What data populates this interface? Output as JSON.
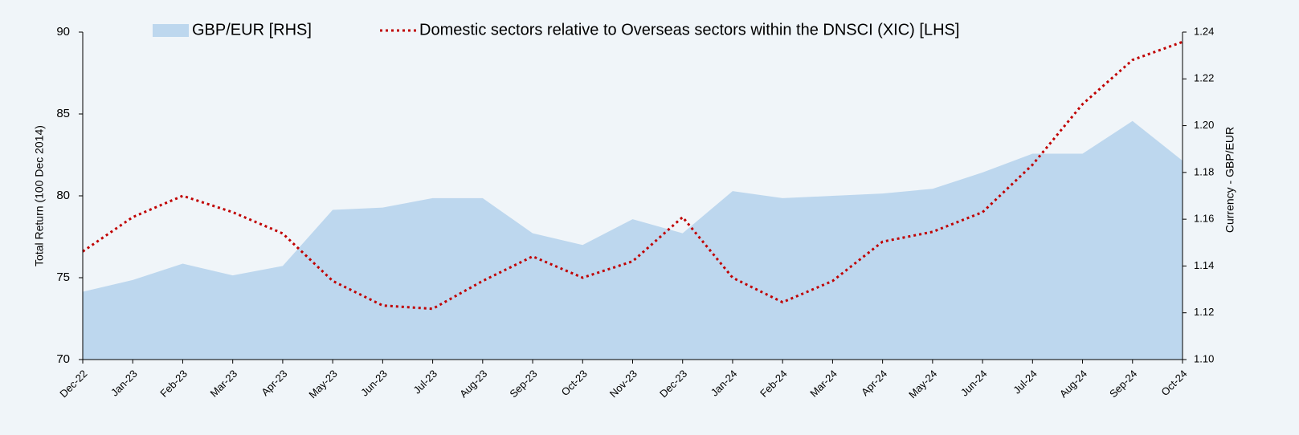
{
  "chart_data": {
    "type": "combo",
    "categories": [
      "Dec-22",
      "Jan-23",
      "Feb-23",
      "Mar-23",
      "Apr-23",
      "May-23",
      "Jun-23",
      "Jul-23",
      "Aug-23",
      "Sep-23",
      "Oct-23",
      "Nov-23",
      "Dec-23",
      "Jan-24",
      "Feb-24",
      "Mar-24",
      "Apr-24",
      "May-24",
      "Jun-24",
      "Jul-24",
      "Aug-24",
      "Sep-24",
      "Oct-24"
    ],
    "series": [
      {
        "name": "GBP/EUR [RHS]",
        "color": "#bdd7ee",
        "mark": "area",
        "axis": "y2",
        "values": [
          1.129,
          1.134,
          1.141,
          1.136,
          1.14,
          1.164,
          1.165,
          1.169,
          1.169,
          1.154,
          1.149,
          1.16,
          1.154,
          1.172,
          1.169,
          1.17,
          1.171,
          1.173,
          1.18,
          1.188,
          1.188,
          1.202,
          1.185
        ]
      },
      {
        "name": "Domestic sectors relative to Overseas sectors within the DNSCI (XIC) [LHS]",
        "color": "#c00000",
        "mark": "dotted-line",
        "axis": "y",
        "values": [
          76.6,
          78.7,
          80.0,
          79.0,
          77.7,
          74.8,
          73.3,
          73.1,
          74.8,
          76.3,
          75.0,
          76.0,
          78.7,
          75.0,
          73.5,
          74.8,
          77.2,
          77.8,
          79.0,
          81.9,
          85.6,
          88.3,
          89.4
        ]
      }
    ],
    "ylabel": "Total Return (100 Dec 2014)",
    "y2label": "Currency -  GBP/EUR",
    "ylim": [
      70,
      90
    ],
    "yticks": [
      70,
      75,
      80,
      85,
      90
    ],
    "y2lim": [
      1.1,
      1.24
    ],
    "y2ticks": [
      {
        "value": 1.1,
        "label": "1.10"
      },
      1.12,
      1.14,
      1.16,
      1.18,
      {
        "value": 1.2,
        "label": "1.20"
      },
      1.22,
      1.24
    ],
    "grid": false,
    "legend": "top"
  }
}
